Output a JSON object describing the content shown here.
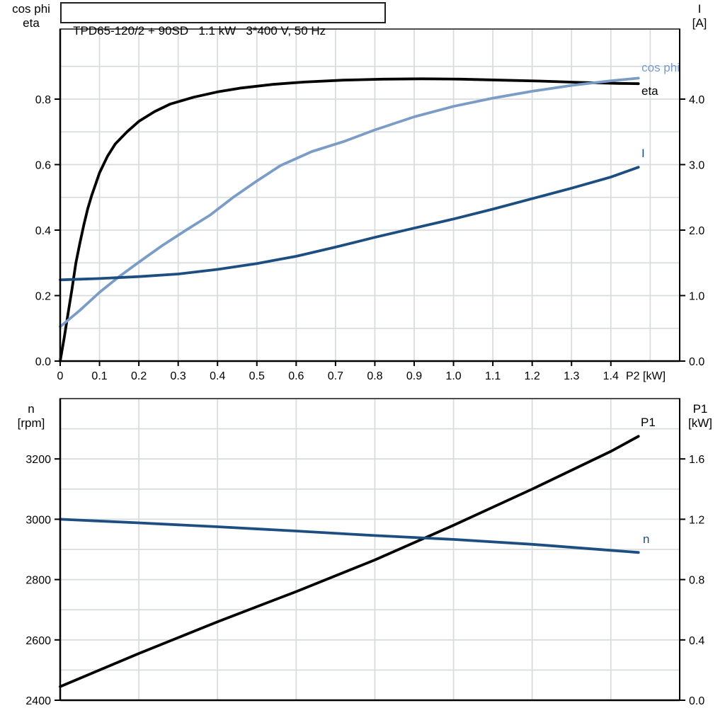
{
  "title": {
    "text": "TPD65-120/2 + 90SD   1.1 kW   3*400 V, 50 Hz"
  },
  "colors": {
    "black_curve": "#000000",
    "light_blue_curve": "#7a9cc6",
    "dark_blue_curve": "#1d4e82",
    "grid": "#d9dcde",
    "border": "#4d4d4d"
  },
  "chart_data": [
    {
      "id": "top",
      "type": "line",
      "xlabel": "P2 [kW]",
      "left_axis_title_lines": [
        "cos phi",
        "eta"
      ],
      "right_axis_title_lines": [
        "I",
        "[A]"
      ],
      "xlim": [
        0,
        1.575
      ],
      "ylim_left": [
        0,
        1.014
      ],
      "ylim_right": [
        0,
        5.07
      ],
      "x_grid_step": 0.1,
      "y_grid_step": 0.1,
      "grid": true,
      "x_ticks": {
        "values": [
          0,
          0.1,
          0.2,
          0.3,
          0.4,
          0.5,
          0.6,
          0.7,
          0.8,
          0.9,
          1.0,
          1.1,
          1.2,
          1.3,
          1.4
        ],
        "labels": [
          "0",
          "0.1",
          "0.2",
          "0.3",
          "0.4",
          "0.5",
          "0.6",
          "0.7",
          "0.8",
          "0.9",
          "1.0",
          "1.1",
          "1.2",
          "1.3",
          "1.4"
        ]
      },
      "left_ticks": {
        "values": [
          0,
          0.2,
          0.4,
          0.6,
          0.8
        ],
        "labels": [
          "0.0",
          "0.2",
          "0.4",
          "0.6",
          "0.8"
        ]
      },
      "right_ticks": {
        "values": [
          0,
          1,
          2,
          3,
          4
        ],
        "labels": [
          "0.0",
          "1.0",
          "2.0",
          "3.0",
          "4.0"
        ]
      },
      "series": [
        {
          "name": "eta",
          "label": "eta",
          "color": "#000000",
          "axis": "left",
          "points": [
            [
              0,
              0
            ],
            [
              0.01,
              0.07
            ],
            [
              0.02,
              0.145
            ],
            [
              0.03,
              0.22
            ],
            [
              0.04,
              0.3
            ],
            [
              0.05,
              0.36
            ],
            [
              0.06,
              0.415
            ],
            [
              0.07,
              0.465
            ],
            [
              0.08,
              0.505
            ],
            [
              0.09,
              0.54
            ],
            [
              0.1,
              0.575
            ],
            [
              0.12,
              0.625
            ],
            [
              0.14,
              0.663
            ],
            [
              0.17,
              0.7
            ],
            [
              0.2,
              0.732
            ],
            [
              0.24,
              0.762
            ],
            [
              0.28,
              0.785
            ],
            [
              0.34,
              0.806
            ],
            [
              0.4,
              0.822
            ],
            [
              0.46,
              0.834
            ],
            [
              0.54,
              0.845
            ],
            [
              0.62,
              0.852
            ],
            [
              0.72,
              0.858
            ],
            [
              0.82,
              0.861
            ],
            [
              0.92,
              0.862
            ],
            [
              1.02,
              0.861
            ],
            [
              1.12,
              0.858
            ],
            [
              1.22,
              0.855
            ],
            [
              1.32,
              0.851
            ],
            [
              1.42,
              0.848
            ],
            [
              1.47,
              0.847
            ]
          ]
        },
        {
          "name": "cos_phi",
          "label": "cos phi",
          "color": "#7a9cc6",
          "axis": "left",
          "points": [
            [
              0,
              0.105
            ],
            [
              0.05,
              0.155
            ],
            [
              0.1,
              0.21
            ],
            [
              0.15,
              0.258
            ],
            [
              0.2,
              0.302
            ],
            [
              0.26,
              0.353
            ],
            [
              0.32,
              0.4
            ],
            [
              0.38,
              0.445
            ],
            [
              0.44,
              0.5
            ],
            [
              0.5,
              0.55
            ],
            [
              0.56,
              0.597
            ],
            [
              0.64,
              0.64
            ],
            [
              0.72,
              0.67
            ],
            [
              0.8,
              0.706
            ],
            [
              0.9,
              0.746
            ],
            [
              1.0,
              0.778
            ],
            [
              1.1,
              0.803
            ],
            [
              1.2,
              0.824
            ],
            [
              1.3,
              0.842
            ],
            [
              1.4,
              0.856
            ],
            [
              1.47,
              0.864
            ]
          ]
        },
        {
          "name": "I",
          "label": "I",
          "color": "#1d4e82",
          "axis": "right",
          "points": [
            [
              0,
              1.24
            ],
            [
              0.1,
              1.26
            ],
            [
              0.2,
              1.29
            ],
            [
              0.3,
              1.33
            ],
            [
              0.4,
              1.4
            ],
            [
              0.5,
              1.49
            ],
            [
              0.6,
              1.6
            ],
            [
              0.7,
              1.74
            ],
            [
              0.8,
              1.89
            ],
            [
              0.9,
              2.03
            ],
            [
              1.0,
              2.17
            ],
            [
              1.1,
              2.32
            ],
            [
              1.2,
              2.48
            ],
            [
              1.3,
              2.64
            ],
            [
              1.4,
              2.81
            ],
            [
              1.47,
              2.96
            ]
          ]
        }
      ]
    },
    {
      "id": "bottom",
      "type": "line",
      "xlabel": "",
      "left_axis_title_lines": [
        "n",
        "[rpm]"
      ],
      "right_axis_title_lines": [
        "P1",
        "[kW]"
      ],
      "xlim": [
        0,
        1.575
      ],
      "ylim_left": [
        2400,
        3400
      ],
      "ylim_right": [
        0,
        2.0
      ],
      "x_grid_step": 0.2,
      "y_grid_step": 100,
      "grid": true,
      "x_ticks": {
        "values": [],
        "labels": []
      },
      "left_ticks": {
        "values": [
          2400,
          2600,
          2800,
          3000,
          3200
        ],
        "labels": [
          "2400",
          "2600",
          "2800",
          "3000",
          "3200"
        ]
      },
      "right_ticks": {
        "values": [
          0,
          0.4,
          0.8,
          1.2,
          1.6
        ],
        "labels": [
          "0.0",
          "0.4",
          "0.8",
          "1.2",
          "1.6"
        ]
      },
      "series": [
        {
          "name": "P1",
          "label": "P1",
          "color": "#000000",
          "axis": "right",
          "points": [
            [
              0,
              0.09
            ],
            [
              0.2,
              0.31
            ],
            [
              0.4,
              0.52
            ],
            [
              0.6,
              0.72
            ],
            [
              0.8,
              0.93
            ],
            [
              1.0,
              1.16
            ],
            [
              1.2,
              1.4
            ],
            [
              1.4,
              1.65
            ],
            [
              1.47,
              1.75
            ]
          ]
        },
        {
          "name": "n",
          "label": "n",
          "color": "#1d4e82",
          "axis": "left",
          "points": [
            [
              0,
              3000
            ],
            [
              0.2,
              2988
            ],
            [
              0.4,
              2975
            ],
            [
              0.6,
              2961
            ],
            [
              0.8,
              2946
            ],
            [
              1.0,
              2933
            ],
            [
              1.2,
              2917
            ],
            [
              1.4,
              2897
            ],
            [
              1.47,
              2890
            ]
          ]
        }
      ]
    }
  ]
}
